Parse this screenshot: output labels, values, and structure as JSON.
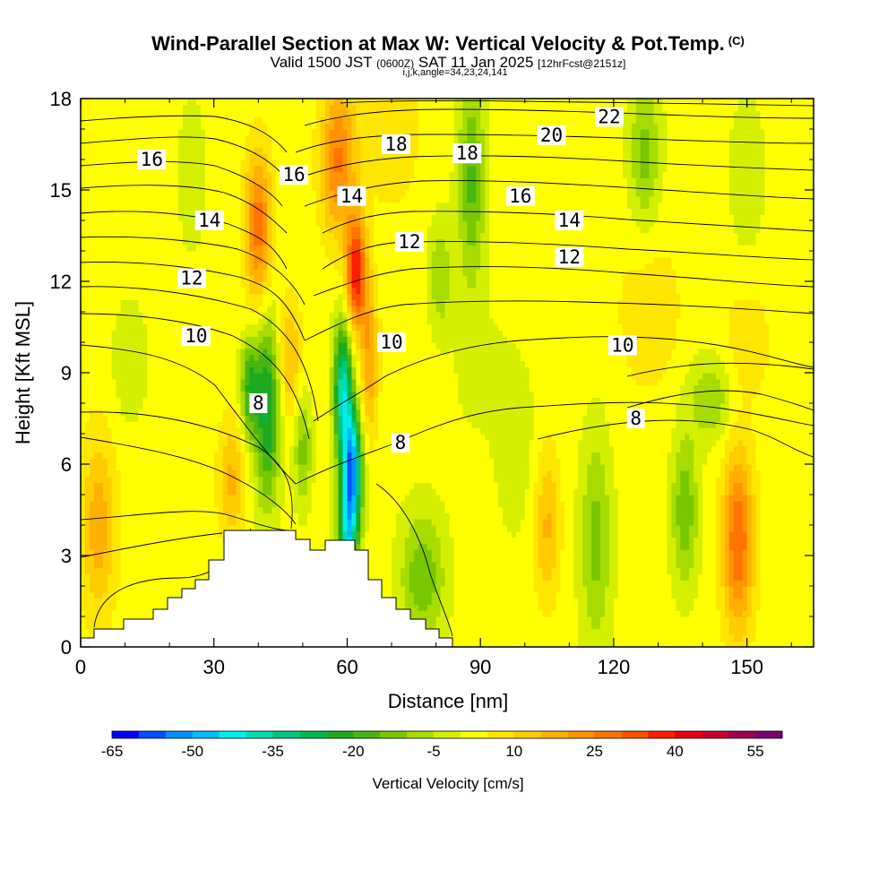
{
  "header": {
    "title": "Wind-Parallel Section at Max W: Vertical Velocity & Pot.Temp.",
    "copyright": "(C)",
    "valid_prefix": "Valid 1500 JST",
    "valid_utc": "(0600Z)",
    "valid_date": "SAT 11 Jan 2025",
    "forecast": "[12hrFcst@2151z]",
    "grid_info": "i,j,k,angle=34,23,24,141"
  },
  "chart_data": {
    "type": "heatmap",
    "xlabel": "Distance [nm]",
    "ylabel": "Height [Kft MSL]",
    "xlim": [
      0,
      165
    ],
    "ylim": [
      0,
      18
    ],
    "xticks": [
      0,
      30,
      60,
      90,
      120,
      150
    ],
    "yticks": [
      0,
      3,
      6,
      9,
      12,
      15,
      18
    ],
    "colorbar": {
      "label": "Vertical Velocity [cm/s]",
      "min": -65,
      "max": 60,
      "step": 5,
      "ticks": [
        "-65",
        "-50",
        "-35",
        "-20",
        "-5",
        "10",
        "25",
        "40",
        "55"
      ],
      "colors": [
        "#0000ff",
        "#0050ff",
        "#0090ff",
        "#00bbff",
        "#00eeee",
        "#00dcb0",
        "#00c880",
        "#00b84a",
        "#1eaa1e",
        "#46b614",
        "#78c800",
        "#a8dc00",
        "#d4f000",
        "#ffff00",
        "#ffe600",
        "#ffcc00",
        "#ffb000",
        "#ff9400",
        "#ff7400",
        "#ff5000",
        "#ff1e00",
        "#e60014",
        "#c80032",
        "#a00050",
        "#7a0070"
      ]
    },
    "contour_labels": [
      {
        "text": "16",
        "x": 16,
        "y": 16.0
      },
      {
        "text": "16",
        "x": 48,
        "y": 15.5
      },
      {
        "text": "18",
        "x": 71,
        "y": 16.5
      },
      {
        "text": "18",
        "x": 87,
        "y": 16.2
      },
      {
        "text": "20",
        "x": 106,
        "y": 16.8
      },
      {
        "text": "22",
        "x": 119,
        "y": 17.4
      },
      {
        "text": "14",
        "x": 29,
        "y": 14.0
      },
      {
        "text": "14",
        "x": 61,
        "y": 14.8
      },
      {
        "text": "16",
        "x": 99,
        "y": 14.8
      },
      {
        "text": "14",
        "x": 110,
        "y": 14.0
      },
      {
        "text": "12",
        "x": 25,
        "y": 12.1
      },
      {
        "text": "12",
        "x": 74,
        "y": 13.3
      },
      {
        "text": "12",
        "x": 110,
        "y": 12.8
      },
      {
        "text": "10",
        "x": 26,
        "y": 10.2
      },
      {
        "text": "10",
        "x": 70,
        "y": 10.0
      },
      {
        "text": "10",
        "x": 122,
        "y": 9.9
      },
      {
        "text": "8",
        "x": 40,
        "y": 8.0
      },
      {
        "text": "8",
        "x": 72,
        "y": 6.7
      },
      {
        "text": "8",
        "x": 125,
        "y": 7.5
      }
    ]
  }
}
